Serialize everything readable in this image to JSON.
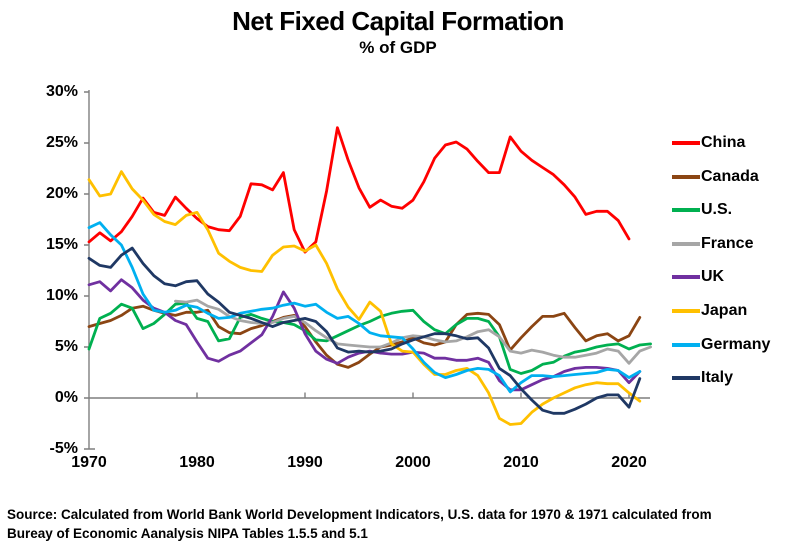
{
  "header": {
    "title": "Net Fixed Capital Formation",
    "subtitle": "% of GDP"
  },
  "source": {
    "line1": "Source:  Calculated from World Bank World Development Indicators, U.S. data for 1970 & 1971 calculated from",
    "line2": "Bureay of Economic Aanalysis NIPA Tables 1.5.5 and 5.1"
  },
  "chart_data": {
    "type": "line",
    "title": "Net Fixed Capital Formation",
    "subtitle": "% of GDP",
    "xlabel": "",
    "ylabel": "",
    "grid": "zero-line-only",
    "legend_position": "right",
    "axis_color": "#7F7F7F",
    "x": [
      1970,
      1971,
      1972,
      1973,
      1974,
      1975,
      1976,
      1977,
      1978,
      1979,
      1980,
      1981,
      1982,
      1983,
      1984,
      1985,
      1986,
      1987,
      1988,
      1989,
      1990,
      1991,
      1992,
      1993,
      1994,
      1995,
      1996,
      1997,
      1998,
      1999,
      2000,
      2001,
      2002,
      2003,
      2004,
      2005,
      2006,
      2007,
      2008,
      2009,
      2010,
      2011,
      2012,
      2013,
      2014,
      2015,
      2016,
      2017,
      2018,
      2019,
      2020,
      2021,
      2022
    ],
    "x_axis": {
      "ticks": [
        1970,
        1980,
        1990,
        2000,
        2010,
        2020
      ],
      "labels": [
        "1970",
        "1980",
        "1990",
        "2000",
        "2010",
        "2020"
      ],
      "range": [
        1970,
        2022
      ]
    },
    "y_axis": {
      "ticks": [
        30,
        25,
        20,
        15,
        10,
        5,
        0,
        -5
      ],
      "labels": [
        "30%",
        "25%",
        "20%",
        "15%",
        "10%",
        "5%",
        "0%",
        "-5%"
      ],
      "range": [
        -5,
        30
      ]
    },
    "series": [
      {
        "name": "China",
        "color": "#FF0000",
        "values": [
          15.3,
          16.2,
          15.4,
          16.3,
          17.8,
          19.6,
          18.2,
          17.9,
          19.7,
          18.6,
          17.6,
          16.8,
          16.5,
          16.4,
          17.8,
          21.0,
          20.9,
          20.4,
          22.1,
          16.5,
          14.3,
          15.3,
          20.3,
          26.5,
          23.3,
          20.6,
          18.7,
          19.4,
          18.8,
          18.6,
          19.4,
          21.2,
          23.5,
          24.8,
          25.1,
          24.4,
          23.2,
          22.1,
          22.1,
          25.6,
          24.2,
          23.3,
          22.6,
          21.9,
          20.9,
          19.7,
          18.0,
          18.3,
          18.3,
          17.4,
          15.6,
          null,
          null
        ]
      },
      {
        "name": "Canada",
        "color": "#8B4513",
        "values": [
          7.0,
          7.3,
          7.6,
          8.1,
          8.8,
          9.0,
          8.6,
          8.3,
          8.1,
          8.4,
          8.4,
          8.6,
          7.0,
          6.4,
          6.3,
          6.8,
          7.1,
          7.5,
          7.9,
          8.1,
          7.0,
          5.5,
          4.2,
          3.3,
          3.0,
          3.5,
          4.3,
          5.0,
          5.2,
          5.5,
          5.9,
          5.4,
          5.2,
          5.5,
          7.2,
          8.2,
          8.3,
          8.2,
          7.2,
          4.7,
          5.9,
          7.0,
          8.0,
          8.0,
          8.3,
          6.9,
          5.6,
          6.1,
          6.3,
          5.6,
          6.1,
          7.9,
          null
        ]
      },
      {
        "name": "U.S.",
        "color": "#00B050",
        "values": [
          4.8,
          7.8,
          8.3,
          9.2,
          8.8,
          6.8,
          7.3,
          8.2,
          9.2,
          9.3,
          7.8,
          7.5,
          5.6,
          5.8,
          7.9,
          8.2,
          7.8,
          7.5,
          7.4,
          7.2,
          6.6,
          5.7,
          5.6,
          6.1,
          6.6,
          7.1,
          7.5,
          8.0,
          8.3,
          8.5,
          8.6,
          7.5,
          6.7,
          6.3,
          7.2,
          7.8,
          7.8,
          7.5,
          6.0,
          2.8,
          2.4,
          2.7,
          3.3,
          3.5,
          4.1,
          4.5,
          4.7,
          5.0,
          5.2,
          5.3,
          4.8,
          5.2,
          5.3
        ]
      },
      {
        "name": "France",
        "color": "#A6A6A6",
        "values": [
          null,
          null,
          null,
          null,
          null,
          null,
          null,
          null,
          9.5,
          9.4,
          9.6,
          9.0,
          8.7,
          8.0,
          7.6,
          7.4,
          7.3,
          7.4,
          7.8,
          8.0,
          7.4,
          6.6,
          5.9,
          5.3,
          5.2,
          5.1,
          5.0,
          5.0,
          5.4,
          5.9,
          6.1,
          6.0,
          5.7,
          5.5,
          5.6,
          6.0,
          6.5,
          6.7,
          6.0,
          4.6,
          4.4,
          4.7,
          4.5,
          4.2,
          4.0,
          4.0,
          4.2,
          4.4,
          4.8,
          4.6,
          3.4,
          4.6,
          5.0
        ]
      },
      {
        "name": "UK",
        "color": "#7030A0",
        "values": [
          11.1,
          11.4,
          10.5,
          11.6,
          10.8,
          9.6,
          8.8,
          8.4,
          7.6,
          7.2,
          5.5,
          3.9,
          3.6,
          4.2,
          4.6,
          5.4,
          6.2,
          8.0,
          10.4,
          8.8,
          6.3,
          4.6,
          3.8,
          3.4,
          4.0,
          4.4,
          4.6,
          4.4,
          4.3,
          4.3,
          4.5,
          4.4,
          3.9,
          3.9,
          3.7,
          3.7,
          3.9,
          3.5,
          1.7,
          0.8,
          0.8,
          1.3,
          1.8,
          2.1,
          2.6,
          2.9,
          3.0,
          3.0,
          2.9,
          2.7,
          1.5,
          2.6,
          null
        ]
      },
      {
        "name": "Japan",
        "color": "#FFC000",
        "values": [
          21.4,
          19.8,
          20.0,
          22.2,
          20.5,
          19.4,
          18.0,
          17.3,
          17.0,
          17.9,
          18.2,
          16.5,
          14.2,
          13.4,
          12.8,
          12.5,
          12.4,
          14.0,
          14.8,
          14.9,
          14.4,
          15.0,
          13.2,
          10.7,
          8.9,
          7.7,
          9.4,
          8.5,
          5.3,
          4.6,
          4.5,
          3.3,
          2.3,
          2.3,
          2.7,
          2.9,
          2.2,
          0.5,
          -2.0,
          -2.6,
          -2.5,
          -1.4,
          -0.6,
          0.0,
          0.5,
          1.0,
          1.3,
          1.5,
          1.4,
          1.4,
          0.5,
          -0.3,
          null
        ]
      },
      {
        "name": "Germany",
        "color": "#00B0F0",
        "values": [
          16.7,
          17.2,
          16.0,
          15.0,
          12.8,
          10.2,
          8.6,
          8.4,
          8.6,
          9.1,
          8.9,
          8.3,
          7.8,
          7.9,
          8.3,
          8.5,
          8.7,
          8.8,
          9.1,
          9.3,
          9.0,
          9.2,
          8.4,
          7.8,
          8.0,
          7.3,
          6.4,
          6.1,
          6.0,
          5.9,
          4.8,
          3.5,
          2.5,
          2.0,
          2.3,
          2.7,
          2.9,
          2.8,
          2.2,
          0.6,
          1.5,
          2.2,
          2.2,
          2.1,
          2.2,
          2.3,
          2.4,
          2.5,
          2.8,
          2.7,
          2.0,
          2.6,
          null
        ]
      },
      {
        "name": "Italy",
        "color": "#1F3864",
        "values": [
          13.7,
          13.0,
          12.8,
          14.0,
          14.7,
          13.2,
          12.0,
          11.2,
          11.0,
          11.4,
          11.5,
          10.2,
          9.4,
          8.4,
          8.1,
          7.8,
          7.4,
          7.0,
          7.4,
          7.6,
          7.8,
          7.5,
          6.5,
          4.9,
          4.5,
          4.6,
          4.5,
          4.6,
          4.8,
          5.3,
          5.7,
          6.0,
          6.3,
          6.3,
          6.1,
          5.8,
          5.9,
          4.9,
          2.9,
          2.2,
          0.9,
          -0.2,
          -1.2,
          -1.5,
          -1.5,
          -1.1,
          -0.6,
          0.0,
          0.3,
          0.3,
          -0.9,
          1.9,
          null
        ]
      }
    ]
  }
}
